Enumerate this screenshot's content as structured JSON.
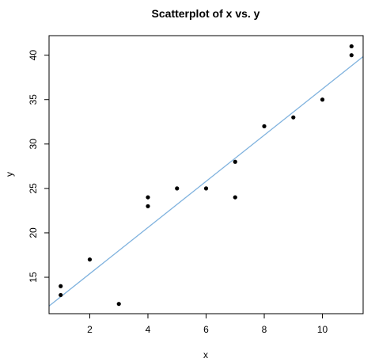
{
  "chart_data": {
    "type": "scatter",
    "title": "Scatterplot of x vs. y",
    "xlabel": "x",
    "ylabel": "y",
    "xlim": [
      0.6,
      11.4
    ],
    "ylim": [
      10.9,
      42.2
    ],
    "xticks": [
      2,
      4,
      6,
      8,
      10
    ],
    "yticks": [
      15,
      20,
      25,
      30,
      35,
      40
    ],
    "points": [
      {
        "x": 1,
        "y": 14
      },
      {
        "x": 1,
        "y": 13
      },
      {
        "x": 2,
        "y": 17
      },
      {
        "x": 3,
        "y": 12
      },
      {
        "x": 4,
        "y": 24
      },
      {
        "x": 4,
        "y": 23
      },
      {
        "x": 5,
        "y": 25
      },
      {
        "x": 6,
        "y": 25
      },
      {
        "x": 7,
        "y": 28
      },
      {
        "x": 7,
        "y": 24
      },
      {
        "x": 8,
        "y": 32
      },
      {
        "x": 9,
        "y": 33
      },
      {
        "x": 10,
        "y": 35
      },
      {
        "x": 11,
        "y": 41
      },
      {
        "x": 11,
        "y": 40
      }
    ],
    "fit_line": {
      "intercept": 10.2,
      "slope": 2.6,
      "color": "#7fb2de"
    },
    "grid": false,
    "point_color": "#000000"
  }
}
